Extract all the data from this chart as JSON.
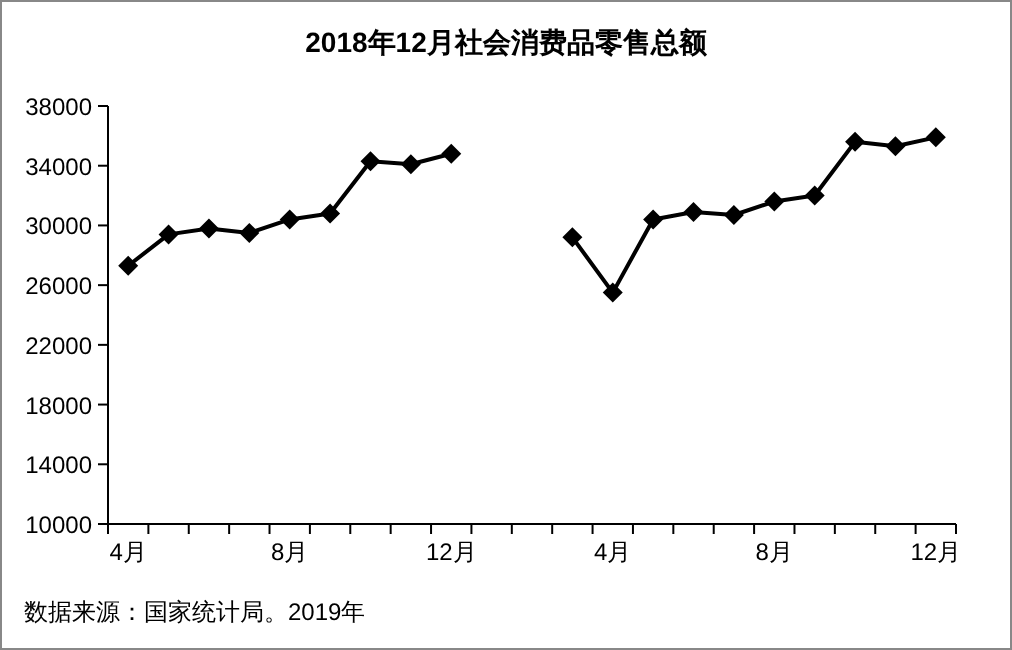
{
  "chart_data": {
    "type": "line",
    "title": "2018年12月社会消费品零售总额",
    "categories": [
      "4月",
      null,
      null,
      null,
      "8月",
      null,
      null,
      null,
      "12月",
      null,
      null,
      null,
      "4月",
      null,
      null,
      null,
      "8月",
      null,
      null,
      null,
      "12月"
    ],
    "series": [
      {
        "color": "#000000",
        "values": [
          27300,
          29400,
          29800,
          29500,
          30400,
          30800,
          34300,
          34100,
          34800,
          null,
          null,
          29200,
          25500,
          30400,
          30900,
          30700,
          31600,
          32000,
          35600,
          35300,
          35900
        ]
      }
    ],
    "ylim": [
      10000,
      38000
    ],
    "yticks": [
      10000,
      14000,
      18000,
      22000,
      26000,
      30000,
      34000,
      38000
    ],
    "marker": "diamond",
    "line_style": "solid",
    "grid": false,
    "annotations": [
      "数据来源：国家统计局。2019年"
    ]
  }
}
